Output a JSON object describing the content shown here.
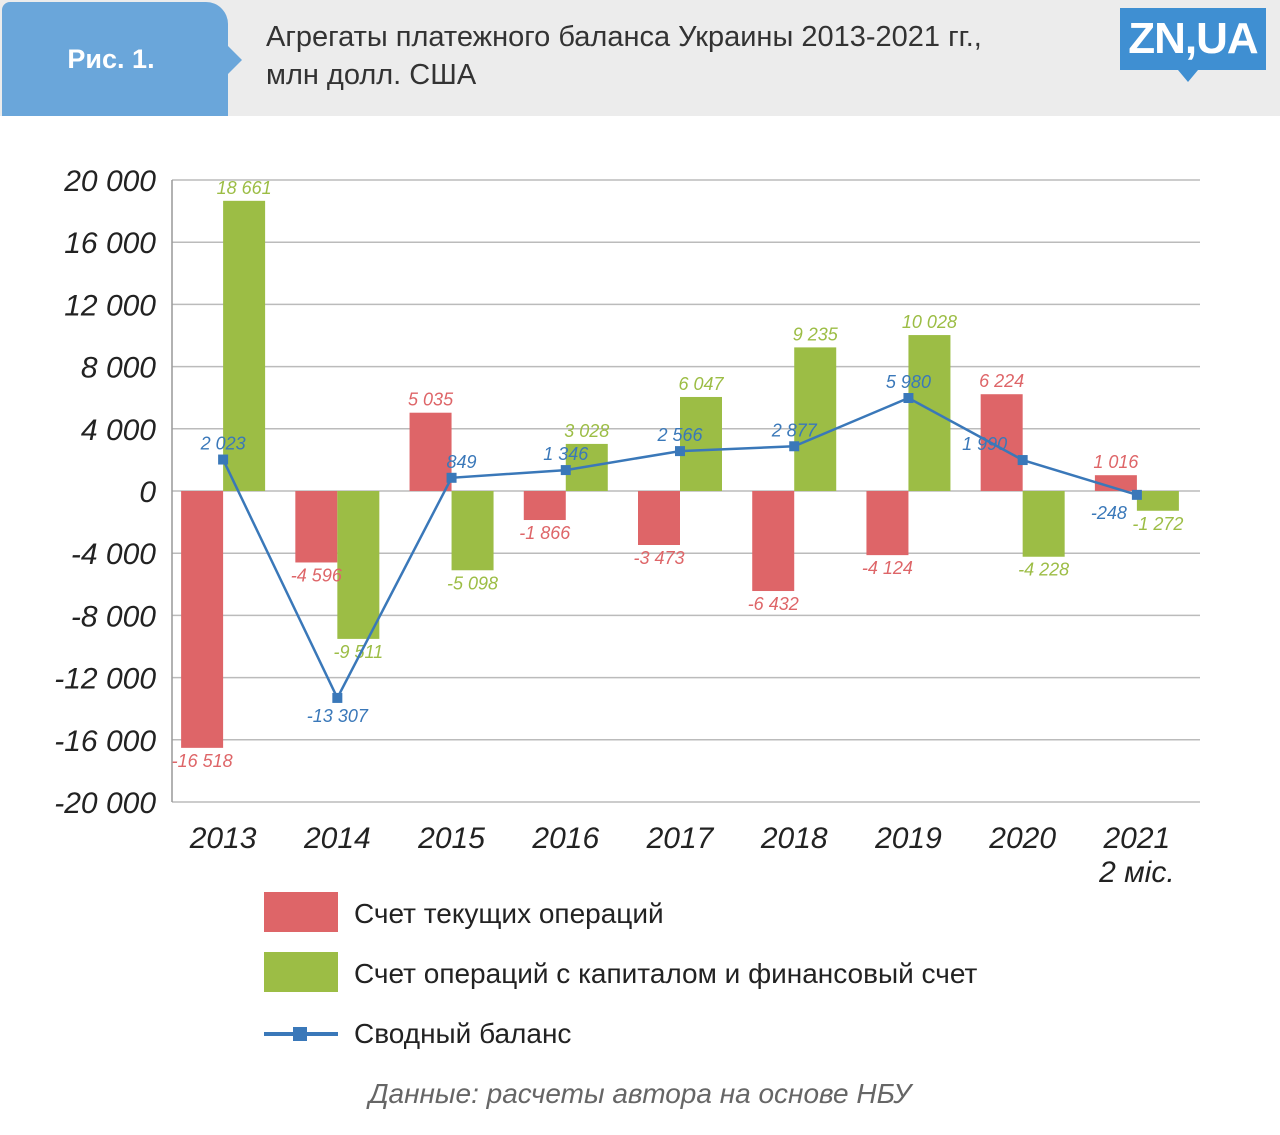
{
  "header": {
    "fig_label": "Рис. 1.",
    "title_line1": "Агрегаты платежного баланса Украины 2013-2021 гг.,",
    "title_line2": "млн долл. США",
    "logo": "ZN,UA"
  },
  "colors": {
    "current": "#de6568",
    "capital": "#9cbd45",
    "balance": "#3a78b9",
    "balance_label": "#3a78b9",
    "grid": "#bbbbbb"
  },
  "chart_data": {
    "type": "bar",
    "categories": [
      "2013",
      "2014",
      "2015",
      "2016",
      "2017",
      "2018",
      "2019",
      "2020",
      "2021"
    ],
    "category_sublabels": [
      "",
      "",
      "",
      "",
      "",
      "",
      "",
      "",
      "2 міс."
    ],
    "ylim": [
      -20000,
      20000
    ],
    "yticks": [
      20000,
      16000,
      12000,
      8000,
      4000,
      0,
      -4000,
      -8000,
      -12000,
      -16000,
      -20000
    ],
    "ytick_labels": [
      "20 000",
      "16 000",
      "12 000",
      "8 000",
      "4 000",
      "0",
      "-4 000",
      "-8 000",
      "-12 000",
      "-16 000",
      "-20 000"
    ],
    "grid": true,
    "series": [
      {
        "name": "Счет текущих операций",
        "kind": "bar",
        "values": [
          -16518,
          -4596,
          5035,
          -1866,
          -3473,
          -6432,
          -4124,
          6224,
          1016
        ],
        "labels": [
          "-16 518",
          "-4 596",
          "5 035",
          "-1 866",
          "-3 473",
          "-6 432",
          "-4 124",
          "6 224",
          "1 016"
        ]
      },
      {
        "name": "Счет операций с капиталом и финансовый счет",
        "kind": "bar",
        "values": [
          18661,
          -9511,
          -5098,
          3028,
          6047,
          9235,
          10028,
          -4228,
          -1272
        ],
        "labels": [
          "18 661",
          "-9 511",
          "-5 098",
          "3 028",
          "6 047",
          "9 235",
          "10 028",
          "-4 228",
          "-1 272"
        ]
      },
      {
        "name": "Сводный баланс",
        "kind": "line",
        "values": [
          2023,
          -13307,
          849,
          1346,
          2566,
          2877,
          5980,
          1990,
          -248
        ],
        "labels": [
          "2 023",
          "-13 307",
          "849",
          "1 346",
          "2 566",
          "2 877",
          "5 980",
          "1 990",
          "-248"
        ]
      }
    ],
    "legend_position": "bottom"
  },
  "source": "Данные: расчеты автора на основе НБУ"
}
